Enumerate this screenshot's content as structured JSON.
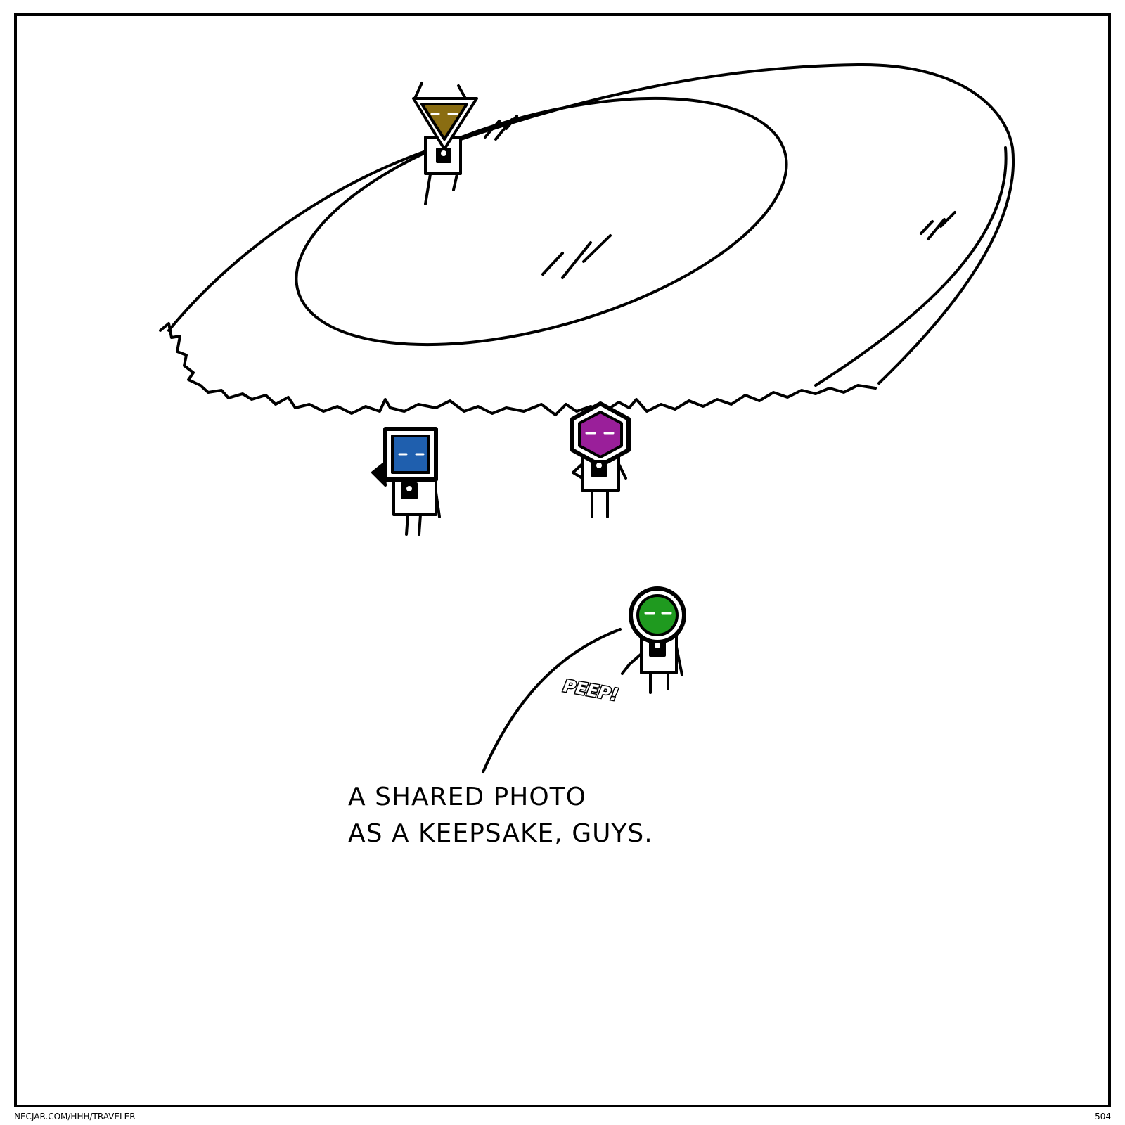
{
  "comic": {
    "caption_lines": [
      "A SHARED PHOTO",
      "AS A KEEPSAKE, GUYS."
    ],
    "sound_effect": "PEEP!",
    "footer_url": "NECJAR.COM/HHH/TRAVELER",
    "page_number": "504"
  },
  "characters": [
    {
      "name": "triangle",
      "color": "#8a6d12"
    },
    {
      "name": "square",
      "color": "#1f5fae"
    },
    {
      "name": "hexagon",
      "color": "#9a1f9a"
    },
    {
      "name": "circle",
      "color": "#1f9a1f"
    }
  ],
  "colors": {
    "ink": "#000000",
    "paper": "#ffffff"
  }
}
